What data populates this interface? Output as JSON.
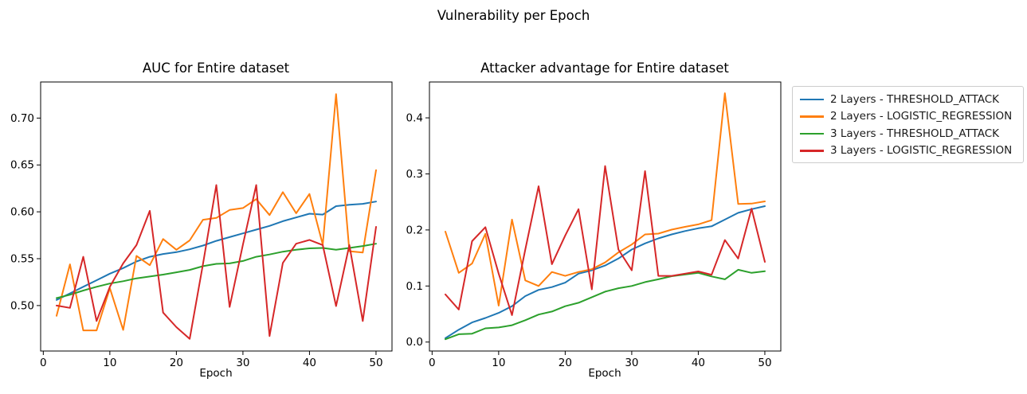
{
  "figure": {
    "suptitle": "Vulnerability per Epoch",
    "background": "#ffffff",
    "text_color": "#000000"
  },
  "legend": {
    "position": "outside-right-top",
    "entries": [
      {
        "label": "2 Layers - THRESHOLD_ATTACK",
        "color": "#1f77b4"
      },
      {
        "label": "2 Layers - LOGISTIC_REGRESSION",
        "color": "#ff7f0e"
      },
      {
        "label": "3 Layers - THRESHOLD_ATTACK",
        "color": "#2ca02c"
      },
      {
        "label": "3 Layers - LOGISTIC_REGRESSION",
        "color": "#d62728"
      }
    ]
  },
  "chart_data": [
    {
      "type": "line",
      "title": "AUC for Entire dataset",
      "xlabel": "Epoch",
      "ylabel": "",
      "grid": false,
      "x": [
        2,
        4,
        6,
        8,
        10,
        12,
        14,
        16,
        18,
        20,
        22,
        24,
        26,
        28,
        30,
        32,
        34,
        36,
        38,
        40,
        42,
        44,
        46,
        48,
        50
      ],
      "xlim": [
        -0.4,
        52.4
      ],
      "ylim": [
        0.4515,
        0.7385
      ],
      "xticks": {
        "values": [
          0,
          10,
          20,
          30,
          40,
          50
        ],
        "labels": [
          "0",
          "10",
          "20",
          "30",
          "40",
          "50"
        ]
      },
      "yticks": {
        "values": [
          0.5,
          0.55,
          0.6,
          0.65,
          0.7
        ],
        "labels": [
          "0.50",
          "0.55",
          "0.60",
          "0.65",
          "0.70"
        ]
      },
      "series": [
        {
          "name": "2 Layers - THRESHOLD_ATTACK",
          "color": "#1f77b4",
          "values": [
            0.506,
            0.513,
            0.52,
            0.527,
            0.534,
            0.54,
            0.547,
            0.552,
            0.555,
            0.557,
            0.56,
            0.564,
            0.569,
            0.573,
            0.577,
            0.581,
            0.585,
            0.59,
            0.594,
            0.598,
            0.597,
            0.606,
            0.6075,
            0.6085,
            0.611
          ]
        },
        {
          "name": "2 Layers - LOGISTIC_REGRESSION",
          "color": "#ff7f0e",
          "values": [
            0.489,
            0.544,
            0.4735,
            0.4735,
            0.5185,
            0.474,
            0.553,
            0.543,
            0.571,
            0.5595,
            0.5695,
            0.5915,
            0.5935,
            0.602,
            0.604,
            0.6135,
            0.5965,
            0.621,
            0.5985,
            0.619,
            0.565,
            0.7255,
            0.558,
            0.5565,
            0.6445
          ]
        },
        {
          "name": "3 Layers - THRESHOLD_ATTACK",
          "color": "#2ca02c",
          "values": [
            0.508,
            0.5115,
            0.516,
            0.52,
            0.5235,
            0.526,
            0.529,
            0.531,
            0.533,
            0.5355,
            0.538,
            0.542,
            0.5445,
            0.545,
            0.5475,
            0.552,
            0.5545,
            0.5575,
            0.5595,
            0.561,
            0.5615,
            0.5595,
            0.5615,
            0.5635,
            0.566
          ]
        },
        {
          "name": "3 Layers - LOGISTIC_REGRESSION",
          "color": "#d62728",
          "values": [
            0.5,
            0.4975,
            0.552,
            0.4835,
            0.52,
            0.545,
            0.5645,
            0.601,
            0.4925,
            0.477,
            0.4645,
            0.5445,
            0.6285,
            0.4985,
            0.565,
            0.6285,
            0.4675,
            0.5455,
            0.566,
            0.57,
            0.5645,
            0.4995,
            0.5645,
            0.4835,
            0.584
          ]
        }
      ]
    },
    {
      "type": "line",
      "title": "Attacker advantage for Entire dataset",
      "xlabel": "Epoch",
      "ylabel": "",
      "grid": false,
      "x": [
        2,
        4,
        6,
        8,
        10,
        12,
        14,
        16,
        18,
        20,
        22,
        24,
        26,
        28,
        30,
        32,
        34,
        36,
        38,
        40,
        42,
        44,
        46,
        48,
        50
      ],
      "xlim": [
        -0.4,
        52.4
      ],
      "ylim": [
        -0.016,
        0.464
      ],
      "xticks": {
        "values": [
          0,
          10,
          20,
          30,
          40,
          50
        ],
        "labels": [
          "0",
          "10",
          "20",
          "30",
          "40",
          "50"
        ]
      },
      "yticks": {
        "values": [
          0.0,
          0.1,
          0.2,
          0.3,
          0.4
        ],
        "labels": [
          "0.0",
          "0.1",
          "0.2",
          "0.3",
          "0.4"
        ]
      },
      "series": [
        {
          "name": "2 Layers - THRESHOLD_ATTACK",
          "color": "#1f77b4",
          "values": [
            0.007,
            0.022,
            0.035,
            0.043,
            0.052,
            0.064,
            0.082,
            0.093,
            0.098,
            0.106,
            0.122,
            0.128,
            0.1365,
            0.149,
            0.165,
            0.176,
            0.185,
            0.192,
            0.198,
            0.203,
            0.2065,
            0.2185,
            0.2305,
            0.237,
            0.2425
          ]
        },
        {
          "name": "2 Layers - LOGISTIC_REGRESSION",
          "color": "#ff7f0e",
          "values": [
            0.197,
            0.1235,
            0.14,
            0.193,
            0.065,
            0.2185,
            0.11,
            0.1,
            0.125,
            0.118,
            0.125,
            0.13,
            0.142,
            0.16,
            0.174,
            0.192,
            0.1935,
            0.2005,
            0.2055,
            0.21,
            0.2175,
            0.444,
            0.2465,
            0.247,
            0.251
          ]
        },
        {
          "name": "3 Layers - THRESHOLD_ATTACK",
          "color": "#2ca02c",
          "values": [
            0.005,
            0.014,
            0.015,
            0.0245,
            0.026,
            0.03,
            0.039,
            0.049,
            0.0545,
            0.064,
            0.07,
            0.08,
            0.09,
            0.096,
            0.1,
            0.107,
            0.112,
            0.1175,
            0.1205,
            0.1235,
            0.117,
            0.112,
            0.129,
            0.1235,
            0.1265
          ]
        },
        {
          "name": "3 Layers - LOGISTIC_REGRESSION",
          "color": "#d62728",
          "values": [
            0.085,
            0.058,
            0.18,
            0.205,
            0.122,
            0.048,
            0.165,
            0.278,
            0.139,
            0.19,
            0.237,
            0.094,
            0.314,
            0.165,
            0.128,
            0.305,
            0.118,
            0.118,
            0.122,
            0.126,
            0.12,
            0.182,
            0.149,
            0.238,
            0.143
          ]
        }
      ]
    }
  ]
}
